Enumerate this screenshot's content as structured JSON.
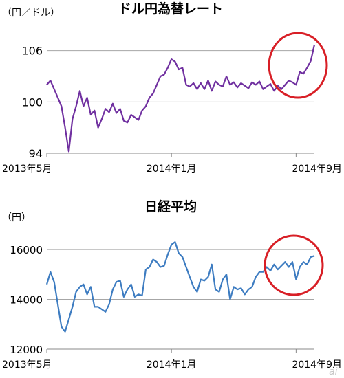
{
  "colors": {
    "usdjpy": "#7030A0",
    "nikkei": "#3D7CC1",
    "highlight": "#D81F26",
    "axis": "#888888",
    "grid": "#a6a6a6"
  },
  "chart_data": [
    {
      "type": "line",
      "title": "ドル円為替レート",
      "unit_label": "（円／ドル）",
      "ylim": [
        94,
        107.5
      ],
      "yticks": [
        "106",
        "100",
        "94"
      ],
      "ytick_values": [
        106,
        100,
        94
      ],
      "xticks": [
        "2013年5月",
        "2014年1月",
        "2014年9月"
      ],
      "xtick_index": [
        0,
        34,
        68
      ],
      "grid": "horizontal",
      "highlight": "red circle around the last weeks",
      "series": [
        {
          "values": [
            102.0,
            102.5,
            101.5,
            100.5,
            99.5,
            97.0,
            94.2,
            98.0,
            99.5,
            101.3,
            99.5,
            100.5,
            98.5,
            99.0,
            97.0,
            98.0,
            99.2,
            98.8,
            99.8,
            98.7,
            99.2,
            97.8,
            97.6,
            98.5,
            98.2,
            97.9,
            99.0,
            99.5,
            100.5,
            101.0,
            102.0,
            103.0,
            103.2,
            104.0,
            105.0,
            104.7,
            103.8,
            104.0,
            102.0,
            101.8,
            102.2,
            101.5,
            102.2,
            101.5,
            102.5,
            101.3,
            102.4,
            102.0,
            101.8,
            103.0,
            102.0,
            102.3,
            101.7,
            102.2,
            101.9,
            101.6,
            102.3,
            102.0,
            102.4,
            101.5,
            101.8,
            102.1,
            101.3,
            101.9,
            101.5,
            102.0,
            102.5,
            102.3,
            102.0,
            103.5,
            103.3,
            104.0,
            104.8,
            106.7
          ]
        }
      ]
    },
    {
      "type": "line",
      "title": "日経平均",
      "unit_label": "（円）",
      "ylim": [
        12000,
        16500
      ],
      "yticks": [
        "16000",
        "14000",
        "12000"
      ],
      "ytick_values": [
        16000,
        14000,
        12000
      ],
      "xticks": [
        "2013年5月",
        "2014年1月",
        "2014年9月"
      ],
      "xtick_index": [
        0,
        34,
        68
      ],
      "grid": "horizontal",
      "highlight": "red circle around the last weeks",
      "series": [
        {
          "values": [
            14600,
            15100,
            14700,
            13800,
            12900,
            12700,
            13200,
            13700,
            14300,
            14500,
            14600,
            14200,
            14500,
            13700,
            13700,
            13600,
            13500,
            13800,
            14400,
            14700,
            14750,
            14100,
            14400,
            14600,
            14100,
            14200,
            14150,
            15200,
            15300,
            15600,
            15500,
            15300,
            15350,
            15800,
            16200,
            16300,
            15850,
            15700,
            15300,
            14900,
            14500,
            14300,
            14800,
            14750,
            14900,
            15400,
            14400,
            14300,
            14800,
            15000,
            14000,
            14500,
            14400,
            14450,
            14200,
            14400,
            14500,
            14900,
            15100,
            15100,
            15300,
            15150,
            15400,
            15200,
            15350,
            15500,
            15300,
            15500,
            14800,
            15300,
            15500,
            15400,
            15700,
            15750
          ]
        }
      ]
    }
  ],
  "watermark": "ai"
}
